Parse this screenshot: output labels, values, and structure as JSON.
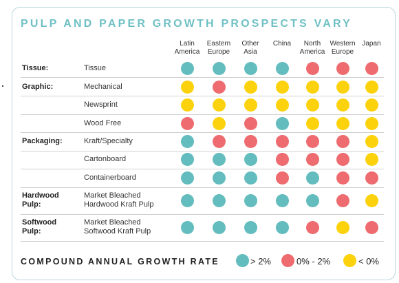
{
  "title": "PULP AND PAPER GROWTH PROSPECTS VARY",
  "colors": {
    "teal": "#63bcbd",
    "red": "#ee6b6f",
    "yellow": "#fcd20d"
  },
  "chart_data": {
    "type": "table",
    "columns": [
      [
        "Latin",
        "America"
      ],
      [
        "Eastern",
        "Europe"
      ],
      [
        "Other",
        "Asia"
      ],
      [
        "China"
      ],
      [
        "North",
        "America"
      ],
      [
        "Western",
        "Europe"
      ],
      [
        "Japan"
      ]
    ],
    "rows": [
      {
        "category": [
          "Tissue:"
        ],
        "product": [
          "Tissue"
        ],
        "values": [
          "teal",
          "teal",
          "teal",
          "teal",
          "red",
          "red",
          "red"
        ]
      },
      {
        "category": [
          "Graphic:"
        ],
        "product": [
          "Mechanical"
        ],
        "values": [
          "yellow",
          "red",
          "yellow",
          "yellow",
          "yellow",
          "yellow",
          "yellow"
        ]
      },
      {
        "category": [],
        "product": [
          "Newsprint"
        ],
        "values": [
          "yellow",
          "yellow",
          "yellow",
          "yellow",
          "yellow",
          "yellow",
          "yellow"
        ]
      },
      {
        "category": [],
        "product": [
          "Wood Free"
        ],
        "values": [
          "red",
          "yellow",
          "red",
          "teal",
          "yellow",
          "yellow",
          "yellow"
        ]
      },
      {
        "category": [
          "Packaging:"
        ],
        "product": [
          "Kraft/Specialty"
        ],
        "values": [
          "teal",
          "red",
          "red",
          "red",
          "red",
          "red",
          "yellow"
        ]
      },
      {
        "category": [],
        "product": [
          "Cartonboard"
        ],
        "values": [
          "teal",
          "teal",
          "teal",
          "red",
          "red",
          "red",
          "yellow"
        ]
      },
      {
        "category": [],
        "product": [
          "Containerboard"
        ],
        "values": [
          "teal",
          "teal",
          "teal",
          "red",
          "teal",
          "red",
          "red"
        ]
      },
      {
        "category": [
          "Hardwood",
          "Pulp:"
        ],
        "product": [
          "Market Bleached",
          "Hardwood Kraft Pulp"
        ],
        "values": [
          "teal",
          "teal",
          "teal",
          "teal",
          "teal",
          "red",
          "yellow"
        ]
      },
      {
        "category": [
          "Softwood",
          "Pulp:"
        ],
        "product": [
          "Market Bleached",
          "Softwood Kraft Pulp"
        ],
        "values": [
          "teal",
          "teal",
          "teal",
          "teal",
          "red",
          "yellow",
          "red"
        ]
      }
    ],
    "legend": {
      "title": "COMPOUND ANNUAL GROWTH RATE",
      "items": [
        {
          "color": "teal",
          "label": "> 2%"
        },
        {
          "color": "red",
          "label": "0% - 2%"
        },
        {
          "color": "yellow",
          "label": "< 0%"
        }
      ]
    }
  }
}
